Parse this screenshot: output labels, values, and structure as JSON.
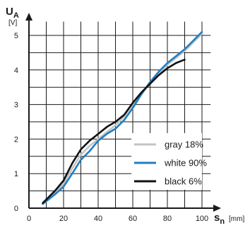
{
  "chart_data": {
    "type": "line",
    "y_symbol": "U",
    "y_subscript": "A",
    "y_unit": "[V]",
    "x_symbol": "s",
    "x_subscript": "n",
    "x_unit": "[mm]",
    "xlim": [
      0,
      105
    ],
    "ylim": [
      0,
      5.4
    ],
    "x_ticks": [
      "0",
      "20",
      "40",
      "60",
      "80",
      "100"
    ],
    "y_ticks": [
      "0",
      "1",
      "2",
      "3",
      "4",
      "5"
    ],
    "x_grid": [
      10,
      20,
      30,
      40,
      50,
      60,
      70,
      80,
      90,
      100
    ],
    "y_grid": [
      0.5,
      1,
      1.5,
      2,
      2.5,
      3,
      3.5,
      4,
      4.5,
      5
    ],
    "grid": true,
    "legend_position": "middle-right",
    "series": [
      {
        "name": "gray 18%",
        "color": "#c4c4c4",
        "points": [
          [
            8,
            0.15
          ],
          [
            15,
            0.45
          ],
          [
            20,
            0.7
          ],
          [
            25,
            1.15
          ],
          [
            30,
            1.55
          ],
          [
            35,
            1.8
          ],
          [
            40,
            2.0
          ],
          [
            45,
            2.2
          ],
          [
            50,
            2.4
          ],
          [
            55,
            2.65
          ],
          [
            60,
            3.0
          ],
          [
            65,
            3.3
          ],
          [
            70,
            3.65
          ],
          [
            75,
            3.9
          ],
          [
            80,
            4.15
          ],
          [
            85,
            4.35
          ],
          [
            90,
            4.55
          ],
          [
            95,
            4.8
          ],
          [
            100,
            5.05
          ]
        ]
      },
      {
        "name": "white 90%",
        "color": "#1f7fc4",
        "points": [
          [
            8,
            0.12
          ],
          [
            15,
            0.4
          ],
          [
            20,
            0.62
          ],
          [
            25,
            1.0
          ],
          [
            30,
            1.4
          ],
          [
            35,
            1.65
          ],
          [
            40,
            1.95
          ],
          [
            45,
            2.15
          ],
          [
            50,
            2.3
          ],
          [
            55,
            2.55
          ],
          [
            60,
            2.9
          ],
          [
            65,
            3.3
          ],
          [
            70,
            3.65
          ],
          [
            75,
            3.95
          ],
          [
            80,
            4.2
          ],
          [
            85,
            4.4
          ],
          [
            90,
            4.6
          ],
          [
            95,
            4.85
          ],
          [
            100,
            5.1
          ]
        ]
      },
      {
        "name": "black 6%",
        "color": "#111111",
        "points": [
          [
            8,
            0.15
          ],
          [
            15,
            0.5
          ],
          [
            20,
            0.8
          ],
          [
            25,
            1.3
          ],
          [
            30,
            1.7
          ],
          [
            35,
            1.95
          ],
          [
            40,
            2.15
          ],
          [
            45,
            2.35
          ],
          [
            50,
            2.5
          ],
          [
            55,
            2.7
          ],
          [
            60,
            3.05
          ],
          [
            65,
            3.35
          ],
          [
            70,
            3.6
          ],
          [
            75,
            3.85
          ],
          [
            80,
            4.05
          ],
          [
            85,
            4.2
          ],
          [
            90,
            4.3
          ]
        ]
      }
    ]
  }
}
